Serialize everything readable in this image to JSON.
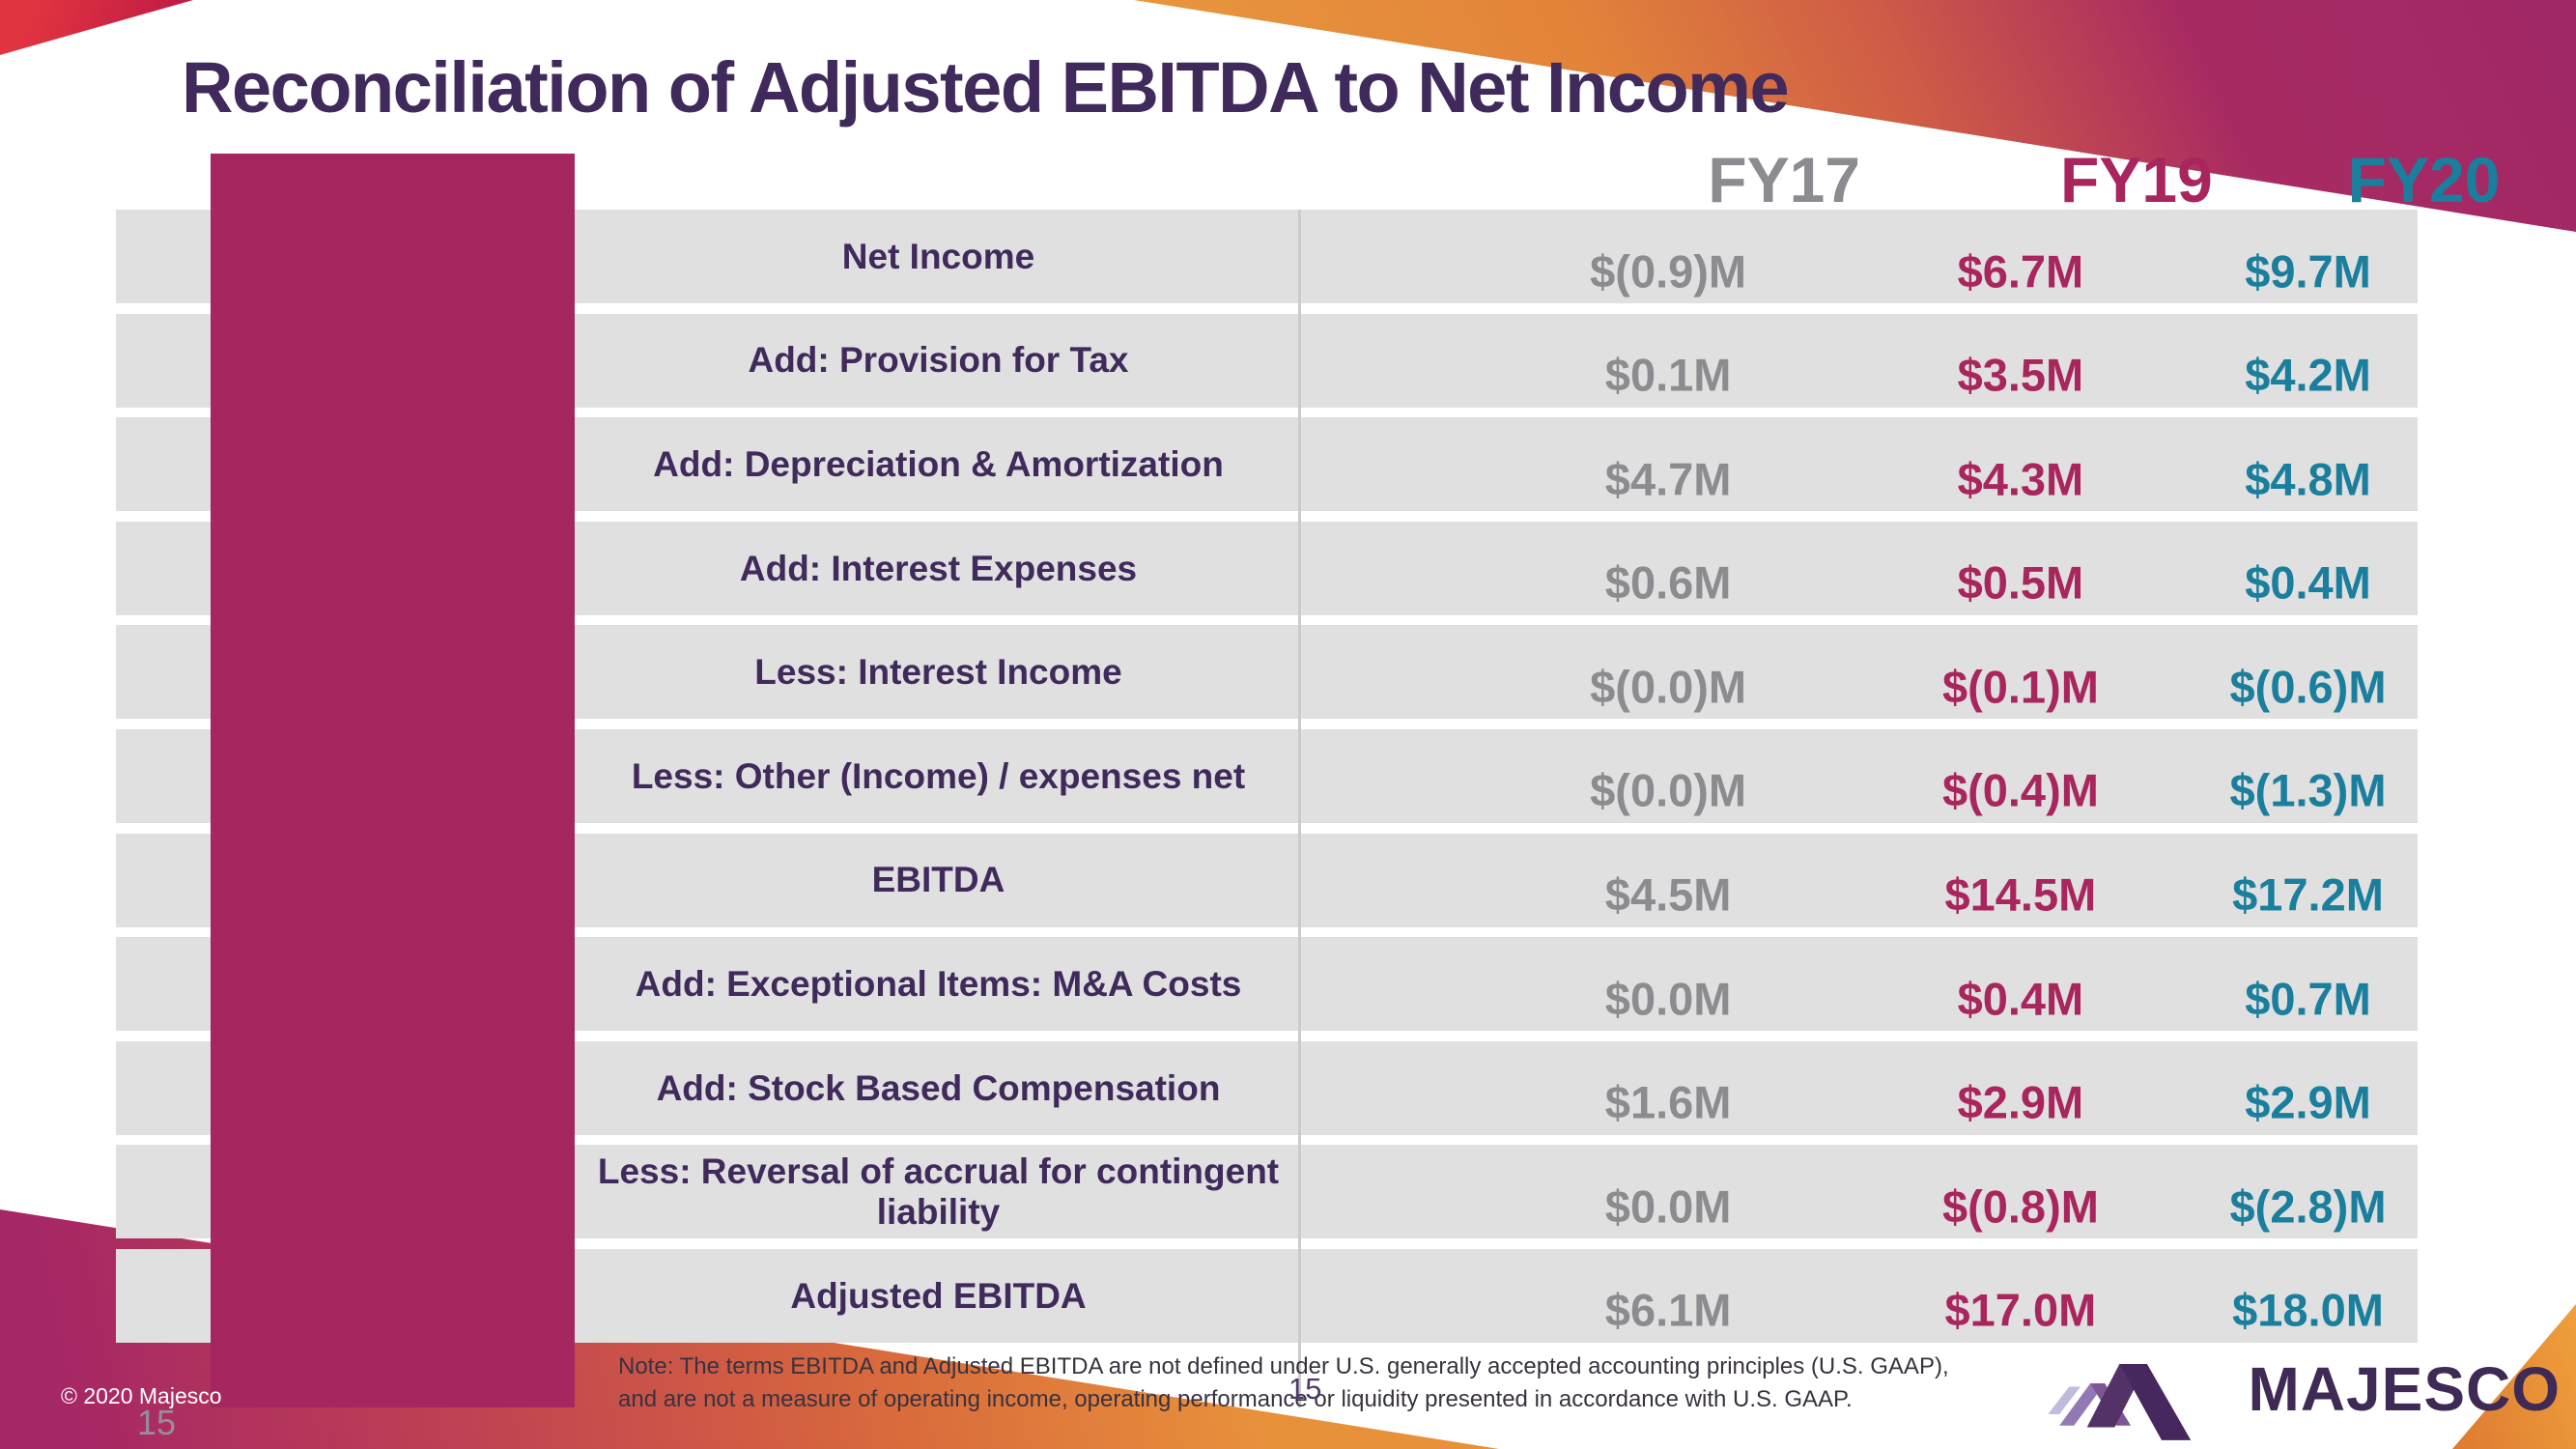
{
  "slide_title": "Reconciliation of Adjusted EBITDA to Net Income",
  "table": {
    "columns": [
      {
        "label": "FY17",
        "color": "#8C8C90"
      },
      {
        "label": "FY19",
        "color": "#A9255E"
      },
      {
        "label": "FY20",
        "color": "#1A7E9D"
      }
    ],
    "rows": [
      {
        "label": "Net Income",
        "values": [
          "$(0.9)M",
          "$6.7M",
          "$9.7M"
        ]
      },
      {
        "label": "Add: Provision for Tax",
        "values": [
          "$0.1M",
          "$3.5M",
          "$4.2M"
        ]
      },
      {
        "label": "Add: Depreciation & Amortization",
        "values": [
          "$4.7M",
          "$4.3M",
          "$4.8M"
        ]
      },
      {
        "label": "Add: Interest Expenses",
        "values": [
          "$0.6M",
          "$0.5M",
          "$0.4M"
        ]
      },
      {
        "label": "Less: Interest Income",
        "values": [
          "$(0.0)M",
          "$(0.1)M",
          "$(0.6)M"
        ]
      },
      {
        "label": "Less: Other (Income) / expenses net",
        "values": [
          "$(0.0)M",
          "$(0.4)M",
          "$(1.3)M"
        ]
      },
      {
        "label": "EBITDA",
        "values": [
          "$4.5M",
          "$14.5M",
          "$17.2M"
        ]
      },
      {
        "label": "Add: Exceptional Items: M&A Costs",
        "values": [
          "$0.0M",
          "$0.4M",
          "$0.7M"
        ]
      },
      {
        "label": "Add: Stock Based Compensation",
        "values": [
          "$1.6M",
          "$2.9M",
          "$2.9M"
        ]
      },
      {
        "label": "Less: Reversal of accrual for contingent liability",
        "values": [
          "$0.0M",
          "$(0.8)M",
          "$(2.8)M"
        ]
      },
      {
        "label": "Adjusted EBITDA",
        "values": [
          "$6.1M",
          "$17.0M",
          "$18.0M"
        ]
      }
    ]
  },
  "footer": {
    "note_line1": "Note: The terms EBITDA and Adjusted EBITDA are not defined under U.S. generally accepted accounting principles (U.S. GAAP),",
    "note_line2": "and are not a measure of operating income, operating performance or liquidity presented in accordance with U.S. GAAP.",
    "copyright": "© 2020 Majesco",
    "page_number": "15",
    "page_number_left": "15",
    "logo_text": "MAJESCO"
  },
  "colors": {
    "title_purple": "#402A5C",
    "fy17_gray": "#8C8C90",
    "fy19_crimson": "#A9255E",
    "fy20_teal": "#1A7E9D",
    "accent_bar_magenta": "#A6275F",
    "row_band_gray": "#E0E0E0",
    "logo_purple": "#3F2A56"
  }
}
